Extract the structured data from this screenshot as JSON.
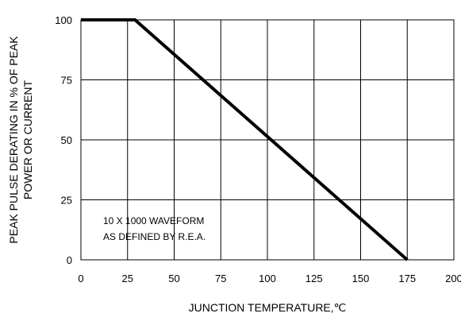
{
  "chart_data": {
    "type": "line",
    "xlabel": "JUNCTION TEMPERATURE,℃",
    "ylabel_lines": [
      "PEAK PULSE DERATING IN % OF PEAK",
      "POWER OR CURRENT"
    ],
    "xlim": [
      0,
      200
    ],
    "ylim": [
      0,
      100
    ],
    "x_ticks": [
      0,
      25,
      50,
      75,
      100,
      125,
      150,
      175,
      200
    ],
    "y_ticks": [
      0,
      25,
      50,
      75,
      100
    ],
    "x_tick_labels": [
      "0",
      "25",
      "50",
      "75",
      "100",
      "125",
      "150",
      "175",
      "200"
    ],
    "y_tick_labels": [
      "0",
      "25",
      "50",
      "75",
      "100"
    ],
    "grid": true,
    "series": [
      {
        "x": [
          0,
          29,
          175
        ],
        "y": [
          100,
          100,
          0
        ]
      }
    ],
    "annotation_lines": [
      "10 X 1000 WAVEFORM",
      "AS DEFINED BY R.E.A."
    ]
  }
}
